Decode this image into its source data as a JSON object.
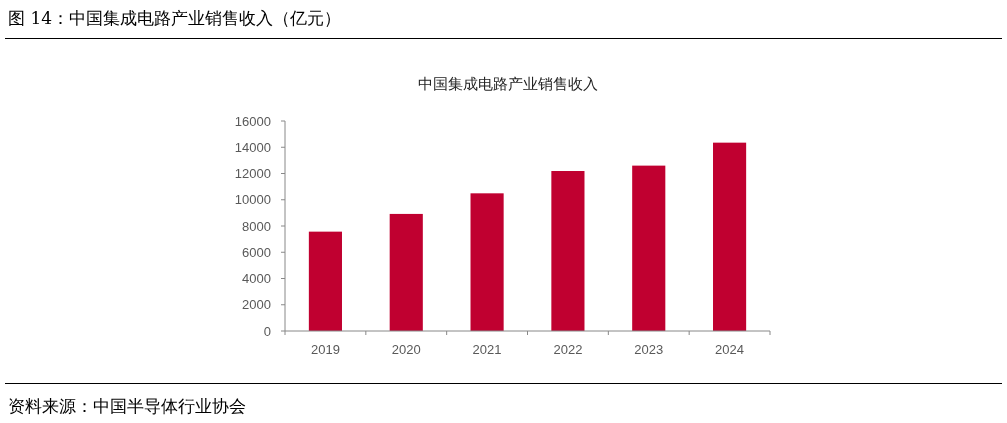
{
  "chart_data": {
    "type": "bar",
    "title": "中国集成电路产业销售收入",
    "annotations": [
      "图 14：中国集成电路产业销售收入（亿元）",
      "资料来源：中国半导体行业协会"
    ],
    "categories": [
      "2019",
      "2020",
      "2021",
      "2022",
      "2023",
      "2024"
    ],
    "values": [
      7570,
      8920,
      10490,
      12190,
      12600,
      14350
    ],
    "color": "#c00030",
    "ylim": [
      0,
      16000
    ],
    "yticks": [
      0,
      2000,
      4000,
      6000,
      8000,
      10000,
      12000,
      14000,
      16000
    ],
    "grid": false
  }
}
